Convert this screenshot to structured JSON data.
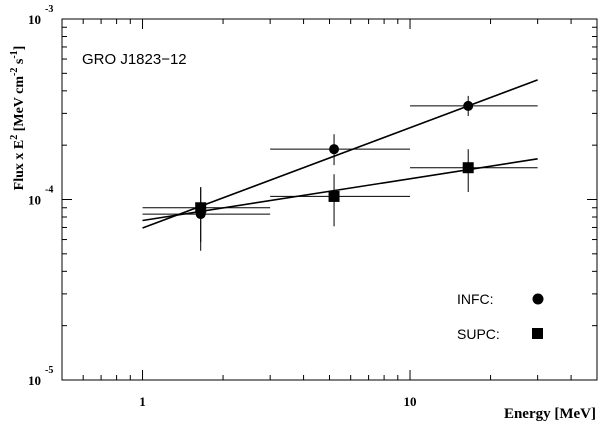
{
  "chart_data": {
    "type": "scatter",
    "title": "GRO J1823−12",
    "xlabel": "Energy [MeV]",
    "ylabel": "Flux x E² [MeV cm⁻² s⁻¹]",
    "x_scale": "log",
    "y_scale": "log",
    "xlim": [
      0.5,
      50
    ],
    "ylim": [
      1e-05,
      0.001
    ],
    "x_ticks": [
      {
        "value": 1,
        "label": "1"
      },
      {
        "value": 10,
        "label": "10"
      }
    ],
    "y_ticks": [
      {
        "value": 1e-05,
        "base": "10",
        "exp": "-5"
      },
      {
        "value": 0.0001,
        "base": "10",
        "exp": "-4"
      },
      {
        "value": 0.001,
        "base": "10",
        "exp": "-3"
      }
    ],
    "grid": false,
    "legend_position": "bottom-right",
    "series": [
      {
        "name": "INFC:",
        "marker": "circle",
        "points": [
          {
            "x": 1.65,
            "y": 8.3e-05,
            "xlo": 1.0,
            "xhi": 3.0,
            "ylo": 5.2e-05,
            "yhi": 0.000117
          },
          {
            "x": 5.2,
            "y": 0.00019,
            "xlo": 3.0,
            "xhi": 10.0,
            "ylo": 0.000155,
            "yhi": 0.00023
          },
          {
            "x": 16.5,
            "y": 0.00033,
            "xlo": 10.0,
            "xhi": 30.0,
            "ylo": 0.00029,
            "yhi": 0.000375
          }
        ],
        "fit": [
          {
            "x": 1.0,
            "y": 6.95e-05
          },
          {
            "x": 30.0,
            "y": 0.00046
          }
        ]
      },
      {
        "name": "SUPC:",
        "marker": "square",
        "points": [
          {
            "x": 1.65,
            "y": 9e-05,
            "xlo": 1.0,
            "xhi": 3.0,
            "ylo": 5.8e-05,
            "yhi": 0.000117
          },
          {
            "x": 5.2,
            "y": 0.000104,
            "xlo": 3.0,
            "xhi": 10.0,
            "ylo": 7.1e-05,
            "yhi": 0.000138
          },
          {
            "x": 16.5,
            "y": 0.00015,
            "xlo": 10.0,
            "xhi": 30.0,
            "ylo": 0.00011,
            "yhi": 0.00019
          }
        ],
        "fit": [
          {
            "x": 1.0,
            "y": 7.65e-05
          },
          {
            "x": 30.0,
            "y": 0.000168
          }
        ]
      }
    ]
  }
}
